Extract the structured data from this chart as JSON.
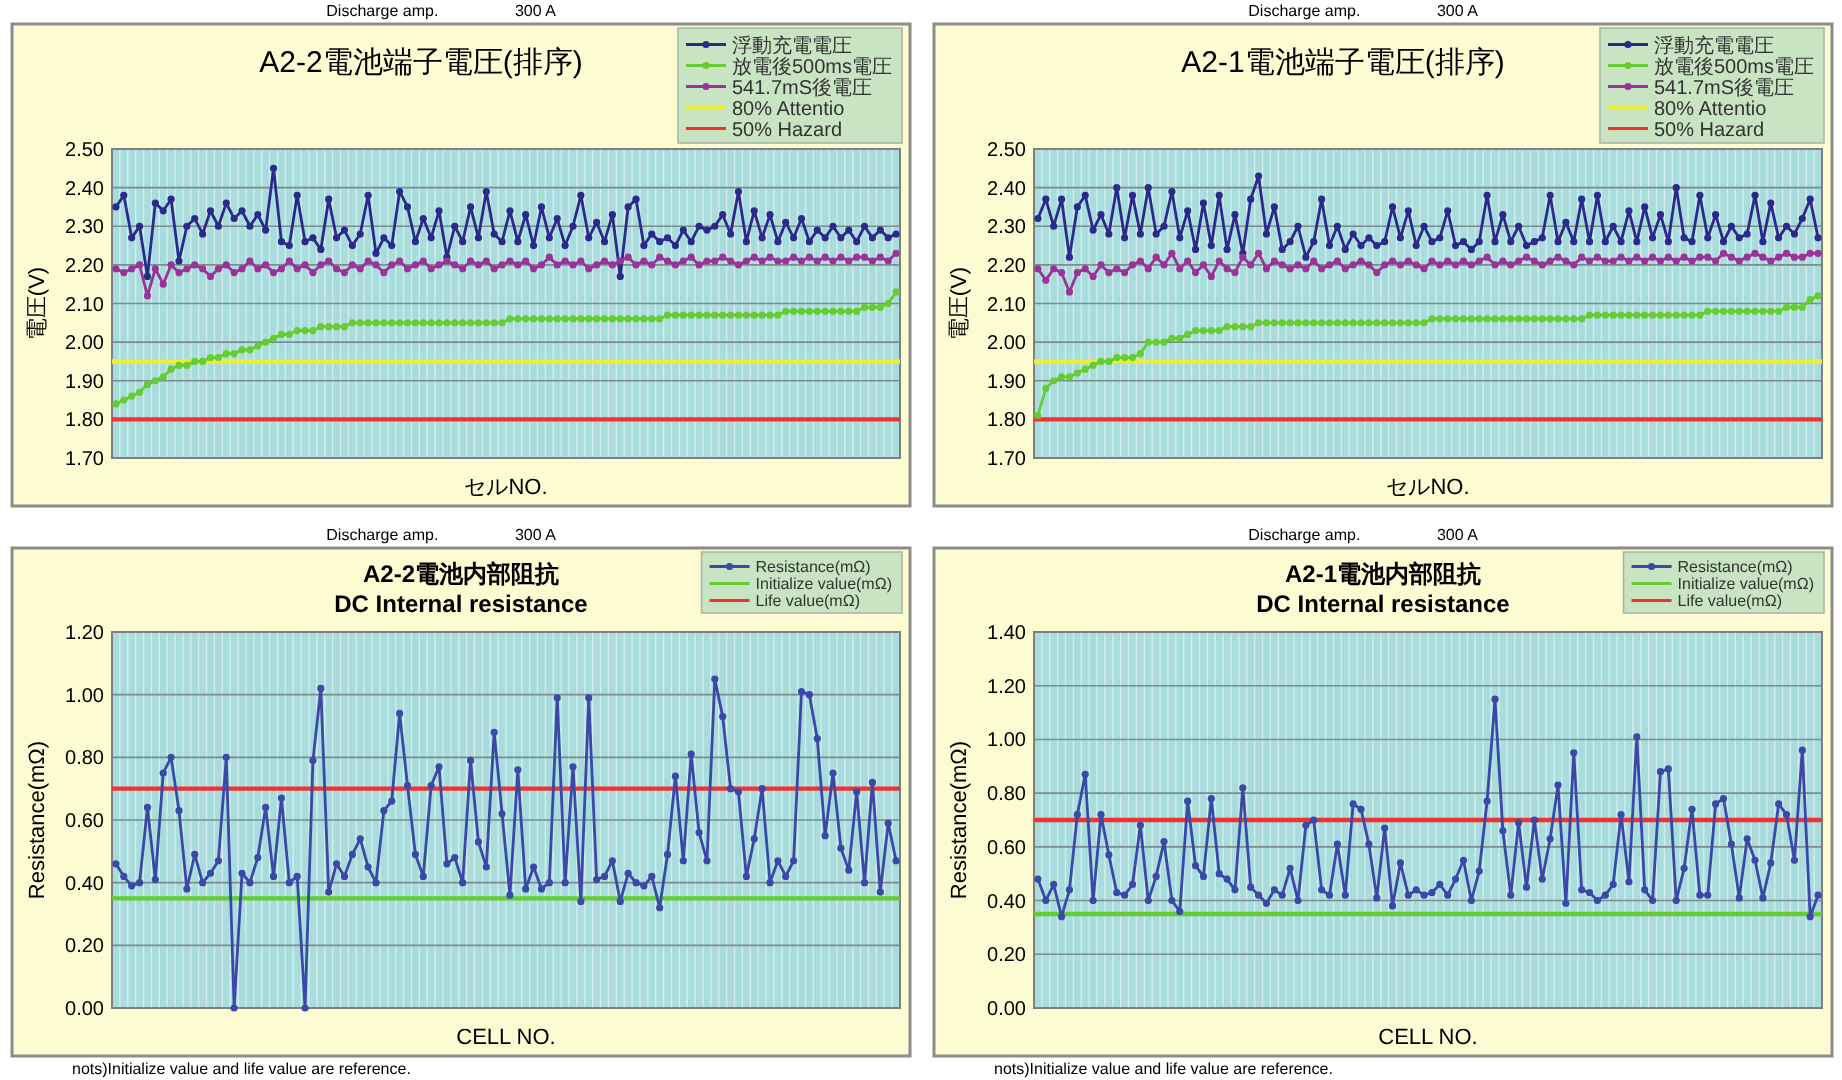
{
  "chart_data": [
    {
      "type": "line",
      "title": "A2-2電池端子電圧(排序)",
      "xlabel": "セルNO.",
      "ylabel": "電圧(V)",
      "categories": [
        null,
        null,
        null,
        null,
        null,
        null,
        null,
        null,
        null,
        null,
        null,
        null,
        null,
        null,
        null,
        null,
        null,
        null,
        null,
        null,
        null,
        null,
        null,
        null,
        null,
        null,
        null,
        null,
        null,
        null,
        null,
        null,
        null,
        null,
        null,
        null,
        null,
        null,
        null,
        null,
        null,
        null,
        null,
        null,
        null,
        null,
        null,
        null,
        null,
        null,
        null,
        null,
        null,
        null,
        null,
        null,
        null,
        null,
        null,
        null,
        null,
        null,
        null,
        null,
        null,
        null,
        null,
        null,
        null,
        null,
        null,
        null,
        null,
        null,
        null,
        null,
        null,
        null,
        null,
        null,
        null,
        null,
        null,
        null,
        null,
        null,
        null,
        null,
        null,
        null,
        null,
        null,
        null,
        null,
        null,
        null,
        null,
        null,
        null,
        null
      ],
      "series": [
        {
          "name": "浮動充電電圧",
          "color": "#2a2a8c",
          "values": [
            2.35,
            2.38,
            2.27,
            2.3,
            2.17,
            2.36,
            2.34,
            2.37,
            2.21,
            2.3,
            2.32,
            2.28,
            2.34,
            2.3,
            2.36,
            2.32,
            2.34,
            2.3,
            2.33,
            2.29,
            2.45,
            2.26,
            2.25,
            2.38,
            2.26,
            2.27,
            2.24,
            2.37,
            2.27,
            2.29,
            2.25,
            2.28,
            2.38,
            2.23,
            2.27,
            2.25,
            2.39,
            2.35,
            2.26,
            2.32,
            2.27,
            2.34,
            2.22,
            2.3,
            2.26,
            2.35,
            2.27,
            2.39,
            2.28,
            2.26,
            2.34,
            2.26,
            2.33,
            2.25,
            2.35,
            2.27,
            2.32,
            2.25,
            2.3,
            2.38,
            2.27,
            2.31,
            2.26,
            2.33,
            2.17,
            2.35,
            2.37,
            2.25,
            2.28,
            2.26,
            2.27,
            2.25,
            2.29,
            2.26,
            2.3,
            2.29,
            2.3,
            2.33,
            2.28,
            2.39,
            2.26,
            2.34,
            2.27,
            2.33,
            2.26,
            2.31,
            2.27,
            2.32,
            2.26,
            2.29,
            2.27,
            2.3,
            2.27,
            2.29,
            2.26,
            2.3,
            2.27,
            2.29,
            2.27,
            2.28
          ]
        },
        {
          "name": "放電後500ms電圧",
          "color": "#66cc33",
          "values": [
            1.84,
            1.85,
            1.86,
            1.87,
            1.89,
            1.9,
            1.91,
            1.93,
            1.94,
            1.94,
            1.95,
            1.95,
            1.96,
            1.96,
            1.97,
            1.97,
            1.98,
            1.98,
            1.99,
            2.0,
            2.01,
            2.02,
            2.02,
            2.03,
            2.03,
            2.03,
            2.04,
            2.04,
            2.04,
            2.04,
            2.05,
            2.05,
            2.05,
            2.05,
            2.05,
            2.05,
            2.05,
            2.05,
            2.05,
            2.05,
            2.05,
            2.05,
            2.05,
            2.05,
            2.05,
            2.05,
            2.05,
            2.05,
            2.05,
            2.05,
            2.06,
            2.06,
            2.06,
            2.06,
            2.06,
            2.06,
            2.06,
            2.06,
            2.06,
            2.06,
            2.06,
            2.06,
            2.06,
            2.06,
            2.06,
            2.06,
            2.06,
            2.06,
            2.06,
            2.06,
            2.07,
            2.07,
            2.07,
            2.07,
            2.07,
            2.07,
            2.07,
            2.07,
            2.07,
            2.07,
            2.07,
            2.07,
            2.07,
            2.07,
            2.07,
            2.08,
            2.08,
            2.08,
            2.08,
            2.08,
            2.08,
            2.08,
            2.08,
            2.08,
            2.08,
            2.09,
            2.09,
            2.09,
            2.1,
            2.13
          ]
        },
        {
          "name": "541.7mS後電圧",
          "color": "#993399",
          "values": [
            2.19,
            2.18,
            2.19,
            2.2,
            2.12,
            2.19,
            2.15,
            2.2,
            2.18,
            2.19,
            2.2,
            2.19,
            2.17,
            2.19,
            2.2,
            2.18,
            2.19,
            2.21,
            2.19,
            2.2,
            2.18,
            2.19,
            2.21,
            2.19,
            2.2,
            2.18,
            2.2,
            2.21,
            2.19,
            2.18,
            2.2,
            2.19,
            2.21,
            2.2,
            2.18,
            2.2,
            2.21,
            2.19,
            2.2,
            2.21,
            2.19,
            2.2,
            2.21,
            2.2,
            2.19,
            2.21,
            2.2,
            2.21,
            2.19,
            2.2,
            2.21,
            2.2,
            2.21,
            2.19,
            2.2,
            2.22,
            2.2,
            2.21,
            2.2,
            2.21,
            2.19,
            2.2,
            2.21,
            2.2,
            2.21,
            2.22,
            2.2,
            2.21,
            2.2,
            2.22,
            2.21,
            2.2,
            2.21,
            2.22,
            2.2,
            2.21,
            2.21,
            2.22,
            2.21,
            2.2,
            2.21,
            2.22,
            2.21,
            2.22,
            2.21,
            2.21,
            2.22,
            2.21,
            2.22,
            2.21,
            2.22,
            2.21,
            2.22,
            2.21,
            2.22,
            2.22,
            2.21,
            2.22,
            2.21,
            2.23
          ]
        }
      ],
      "ylim": [
        1.7,
        2.5
      ],
      "yticks": [
        {
          "value": 1.7,
          "label": "1.70"
        },
        {
          "value": 1.8,
          "label": "1.80"
        },
        {
          "value": 1.9,
          "label": "1.90"
        },
        {
          "value": 2.0,
          "label": "2.00"
        },
        {
          "value": 2.1,
          "label": "2.10"
        },
        {
          "value": 2.2,
          "label": "2.20"
        },
        {
          "value": 2.3,
          "label": "2.30"
        },
        {
          "value": 2.4,
          "label": "2.40"
        },
        {
          "value": 2.5,
          "label": "2.50"
        }
      ],
      "ref_lines": [
        {
          "axis": "y",
          "value": 1.95,
          "label": "80% Attentio",
          "color": "#eeee33"
        },
        {
          "axis": "y",
          "value": 1.8,
          "label": "50% Hazard",
          "color": "#ee3333"
        }
      ],
      "grid": true,
      "legend": "top right",
      "marker": "circle",
      "line_style": "solid",
      "tick_labels": "y",
      "annotations": [
        "Discharge amp.",
        "300 A"
      ]
    },
    {
      "type": "line",
      "title": "A2-1電池端子電圧(排序)",
      "xlabel": "セルNO.",
      "ylabel": "電圧(V)",
      "categories": [
        null,
        null,
        null,
        null,
        null,
        null,
        null,
        null,
        null,
        null,
        null,
        null,
        null,
        null,
        null,
        null,
        null,
        null,
        null,
        null,
        null,
        null,
        null,
        null,
        null,
        null,
        null,
        null,
        null,
        null,
        null,
        null,
        null,
        null,
        null,
        null,
        null,
        null,
        null,
        null,
        null,
        null,
        null,
        null,
        null,
        null,
        null,
        null,
        null,
        null,
        null,
        null,
        null,
        null,
        null,
        null,
        null,
        null,
        null,
        null,
        null,
        null,
        null,
        null,
        null,
        null,
        null,
        null,
        null,
        null,
        null,
        null,
        null,
        null,
        null,
        null,
        null,
        null,
        null,
        null,
        null,
        null,
        null,
        null,
        null,
        null,
        null,
        null,
        null,
        null,
        null,
        null,
        null,
        null,
        null,
        null,
        null,
        null,
        null,
        null
      ],
      "series": [
        {
          "name": "浮動充電電圧",
          "color": "#2a2a8c",
          "values": [
            2.32,
            2.37,
            2.3,
            2.37,
            2.22,
            2.35,
            2.38,
            2.29,
            2.33,
            2.28,
            2.4,
            2.27,
            2.38,
            2.28,
            2.4,
            2.28,
            2.3,
            2.39,
            2.27,
            2.34,
            2.24,
            2.36,
            2.25,
            2.38,
            2.24,
            2.33,
            2.23,
            2.37,
            2.43,
            2.28,
            2.35,
            2.24,
            2.26,
            2.3,
            2.22,
            2.26,
            2.37,
            2.25,
            2.3,
            2.24,
            2.28,
            2.25,
            2.27,
            2.25,
            2.26,
            2.35,
            2.27,
            2.34,
            2.25,
            2.3,
            2.26,
            2.27,
            2.34,
            2.25,
            2.26,
            2.24,
            2.26,
            2.38,
            2.26,
            2.33,
            2.26,
            2.3,
            2.25,
            2.26,
            2.27,
            2.38,
            2.26,
            2.31,
            2.26,
            2.37,
            2.26,
            2.38,
            2.26,
            2.3,
            2.26,
            2.34,
            2.26,
            2.35,
            2.27,
            2.33,
            2.26,
            2.4,
            2.27,
            2.26,
            2.38,
            2.27,
            2.33,
            2.26,
            2.3,
            2.27,
            2.28,
            2.38,
            2.26,
            2.36,
            2.27,
            2.3,
            2.28,
            2.32,
            2.37,
            2.27
          ]
        },
        {
          "name": "放電後500ms電圧",
          "color": "#66cc33",
          "values": [
            1.81,
            1.88,
            1.9,
            1.91,
            1.91,
            1.92,
            1.93,
            1.94,
            1.95,
            1.95,
            1.96,
            1.96,
            1.96,
            1.97,
            2.0,
            2.0,
            2.0,
            2.01,
            2.01,
            2.02,
            2.03,
            2.03,
            2.03,
            2.03,
            2.04,
            2.04,
            2.04,
            2.04,
            2.05,
            2.05,
            2.05,
            2.05,
            2.05,
            2.05,
            2.05,
            2.05,
            2.05,
            2.05,
            2.05,
            2.05,
            2.05,
            2.05,
            2.05,
            2.05,
            2.05,
            2.05,
            2.05,
            2.05,
            2.05,
            2.05,
            2.06,
            2.06,
            2.06,
            2.06,
            2.06,
            2.06,
            2.06,
            2.06,
            2.06,
            2.06,
            2.06,
            2.06,
            2.06,
            2.06,
            2.06,
            2.06,
            2.06,
            2.06,
            2.06,
            2.06,
            2.07,
            2.07,
            2.07,
            2.07,
            2.07,
            2.07,
            2.07,
            2.07,
            2.07,
            2.07,
            2.07,
            2.07,
            2.07,
            2.07,
            2.07,
            2.08,
            2.08,
            2.08,
            2.08,
            2.08,
            2.08,
            2.08,
            2.08,
            2.08,
            2.08,
            2.09,
            2.09,
            2.09,
            2.11,
            2.12
          ]
        },
        {
          "name": "541.7mS後電圧",
          "color": "#993399",
          "values": [
            2.19,
            2.16,
            2.19,
            2.18,
            2.13,
            2.18,
            2.19,
            2.17,
            2.2,
            2.18,
            2.19,
            2.18,
            2.2,
            2.21,
            2.19,
            2.22,
            2.2,
            2.23,
            2.19,
            2.21,
            2.18,
            2.2,
            2.17,
            2.21,
            2.19,
            2.18,
            2.22,
            2.2,
            2.23,
            2.19,
            2.21,
            2.2,
            2.19,
            2.2,
            2.19,
            2.21,
            2.19,
            2.2,
            2.21,
            2.19,
            2.2,
            2.21,
            2.2,
            2.18,
            2.2,
            2.21,
            2.2,
            2.21,
            2.2,
            2.19,
            2.21,
            2.2,
            2.21,
            2.2,
            2.21,
            2.2,
            2.21,
            2.22,
            2.2,
            2.21,
            2.2,
            2.21,
            2.22,
            2.21,
            2.2,
            2.21,
            2.22,
            2.21,
            2.2,
            2.22,
            2.21,
            2.22,
            2.21,
            2.21,
            2.22,
            2.21,
            2.22,
            2.21,
            2.22,
            2.21,
            2.22,
            2.21,
            2.22,
            2.21,
            2.22,
            2.22,
            2.21,
            2.23,
            2.22,
            2.21,
            2.22,
            2.23,
            2.22,
            2.21,
            2.22,
            2.23,
            2.22,
            2.22,
            2.23,
            2.23
          ]
        }
      ],
      "ylim": [
        1.7,
        2.5
      ],
      "yticks": [
        {
          "value": 1.7,
          "label": "1.70"
        },
        {
          "value": 1.8,
          "label": "1.80"
        },
        {
          "value": 1.9,
          "label": "1.90"
        },
        {
          "value": 2.0,
          "label": "2.00"
        },
        {
          "value": 2.1,
          "label": "2.10"
        },
        {
          "value": 2.2,
          "label": "2.20"
        },
        {
          "value": 2.3,
          "label": "2.30"
        },
        {
          "value": 2.4,
          "label": "2.40"
        },
        {
          "value": 2.5,
          "label": "2.50"
        }
      ],
      "ref_lines": [
        {
          "axis": "y",
          "value": 1.95,
          "label": "80% Attentio",
          "color": "#eeee33"
        },
        {
          "axis": "y",
          "value": 1.8,
          "label": "50% Hazard",
          "color": "#ee3333"
        }
      ],
      "grid": true,
      "legend": "top right",
      "marker": "circle",
      "line_style": "solid",
      "tick_labels": "y",
      "annotations": [
        "Discharge amp.",
        "300 A"
      ]
    },
    {
      "type": "line",
      "title": "A2-2電池内部阻抗",
      "subtitle": "DC Internal resistance",
      "xlabel": "CELL NO.",
      "ylabel": "Resistance(mΩ)",
      "categories": [
        null,
        null,
        null,
        null,
        null,
        null,
        null,
        null,
        null,
        null,
        null,
        null,
        null,
        null,
        null,
        null,
        null,
        null,
        null,
        null,
        null,
        null,
        null,
        null,
        null,
        null,
        null,
        null,
        null,
        null,
        null,
        null,
        null,
        null,
        null,
        null,
        null,
        null,
        null,
        null,
        null,
        null,
        null,
        null,
        null,
        null,
        null,
        null,
        null,
        null,
        null,
        null,
        null,
        null,
        null,
        null,
        null,
        null,
        null,
        null,
        null,
        null,
        null,
        null,
        null,
        null,
        null,
        null,
        null,
        null,
        null,
        null,
        null,
        null,
        null,
        null,
        null,
        null,
        null,
        null,
        null,
        null,
        null,
        null,
        null,
        null,
        null,
        null,
        null,
        null,
        null,
        null,
        null,
        null,
        null,
        null,
        null,
        null,
        null,
        null
      ],
      "series": [
        {
          "name": "Resistance(mΩ)",
          "color": "#3a48a8",
          "values": [
            0.46,
            0.42,
            0.39,
            0.4,
            0.64,
            0.41,
            0.75,
            0.8,
            0.63,
            0.38,
            0.49,
            0.4,
            0.43,
            0.47,
            0.8,
            0.0,
            0.43,
            0.4,
            0.48,
            0.64,
            0.42,
            0.67,
            0.4,
            0.42,
            0.0,
            0.79,
            1.02,
            0.37,
            0.46,
            0.42,
            0.49,
            0.54,
            0.45,
            0.4,
            0.63,
            0.66,
            0.94,
            0.71,
            0.49,
            0.42,
            0.71,
            0.77,
            0.46,
            0.48,
            0.4,
            0.79,
            0.53,
            0.45,
            0.88,
            0.62,
            0.36,
            0.76,
            0.38,
            0.45,
            0.38,
            0.4,
            0.99,
            0.4,
            0.77,
            0.34,
            0.99,
            0.41,
            0.42,
            0.47,
            0.34,
            0.43,
            0.4,
            0.39,
            0.42,
            0.32,
            0.49,
            0.74,
            0.47,
            0.81,
            0.56,
            0.47,
            1.05,
            0.93,
            0.7,
            0.69,
            0.42,
            0.54,
            0.7,
            0.4,
            0.47,
            0.42,
            0.47,
            1.01,
            1.0,
            0.86,
            0.55,
            0.75,
            0.51,
            0.44,
            0.69,
            0.4,
            0.72,
            0.37,
            0.59,
            0.47
          ]
        }
      ],
      "ylim": [
        0,
        1.2
      ],
      "yticks": [
        {
          "value": 0,
          "label": "0.00"
        },
        {
          "value": 0.2,
          "label": "0.20"
        },
        {
          "value": 0.4,
          "label": "0.40"
        },
        {
          "value": 0.6,
          "label": "0.60"
        },
        {
          "value": 0.8,
          "label": "0.80"
        },
        {
          "value": 1.0,
          "label": "1.00"
        },
        {
          "value": 1.2,
          "label": "1.20"
        }
      ],
      "ref_lines": [
        {
          "axis": "y",
          "value": 0.35,
          "label": "Initialize value(mΩ)",
          "color": "#66cc33"
        },
        {
          "axis": "y",
          "value": 0.7,
          "label": "Life value(mΩ)",
          "color": "#ee3333"
        }
      ],
      "grid": true,
      "legend": "top right",
      "marker": "circle",
      "line_style": "solid",
      "tick_labels": "y",
      "annotations": [
        "Discharge amp.",
        "300 A",
        "nots)Initialize value and life value are reference."
      ]
    },
    {
      "type": "line",
      "title": "A2-1電池内部阻抗",
      "subtitle": "DC Internal resistance",
      "xlabel": "CELL NO.",
      "ylabel": "Resistance(mΩ)",
      "categories": [
        null,
        null,
        null,
        null,
        null,
        null,
        null,
        null,
        null,
        null,
        null,
        null,
        null,
        null,
        null,
        null,
        null,
        null,
        null,
        null,
        null,
        null,
        null,
        null,
        null,
        null,
        null,
        null,
        null,
        null,
        null,
        null,
        null,
        null,
        null,
        null,
        null,
        null,
        null,
        null,
        null,
        null,
        null,
        null,
        null,
        null,
        null,
        null,
        null,
        null,
        null,
        null,
        null,
        null,
        null,
        null,
        null,
        null,
        null,
        null,
        null,
        null,
        null,
        null,
        null,
        null,
        null,
        null,
        null,
        null,
        null,
        null,
        null,
        null,
        null,
        null,
        null,
        null,
        null,
        null,
        null,
        null,
        null,
        null,
        null,
        null,
        null,
        null,
        null,
        null,
        null,
        null,
        null,
        null,
        null,
        null,
        null,
        null,
        null,
        null
      ],
      "series": [
        {
          "name": "Resistance(mΩ)",
          "color": "#3a48a8",
          "values": [
            0.48,
            0.4,
            0.46,
            0.34,
            0.44,
            0.72,
            0.87,
            0.4,
            0.72,
            0.57,
            0.43,
            0.42,
            0.46,
            0.68,
            0.4,
            0.49,
            0.62,
            0.4,
            0.36,
            0.77,
            0.53,
            0.49,
            0.78,
            0.5,
            0.48,
            0.44,
            0.82,
            0.45,
            0.42,
            0.39,
            0.44,
            0.42,
            0.52,
            0.4,
            0.68,
            0.7,
            0.44,
            0.42,
            0.61,
            0.42,
            0.76,
            0.74,
            0.61,
            0.41,
            0.67,
            0.38,
            0.54,
            0.42,
            0.44,
            0.42,
            0.43,
            0.46,
            0.42,
            0.48,
            0.55,
            0.4,
            0.51,
            0.77,
            1.15,
            0.66,
            0.42,
            0.69,
            0.45,
            0.7,
            0.48,
            0.63,
            0.83,
            0.39,
            0.95,
            0.44,
            0.43,
            0.4,
            0.42,
            0.46,
            0.72,
            0.47,
            1.01,
            0.44,
            0.4,
            0.88,
            0.89,
            0.4,
            0.52,
            0.74,
            0.42,
            0.42,
            0.76,
            0.78,
            0.61,
            0.41,
            0.63,
            0.55,
            0.41,
            0.54,
            0.76,
            0.72,
            0.55,
            0.96,
            0.34,
            0.42
          ]
        }
      ],
      "ylim": [
        0,
        1.4
      ],
      "yticks": [
        {
          "value": 0,
          "label": "0.00"
        },
        {
          "value": 0.2,
          "label": "0.20"
        },
        {
          "value": 0.4,
          "label": "0.40"
        },
        {
          "value": 0.6,
          "label": "0.60"
        },
        {
          "value": 0.8,
          "label": "0.80"
        },
        {
          "value": 1.0,
          "label": "1.00"
        },
        {
          "value": 1.2,
          "label": "1.20"
        },
        {
          "value": 1.4,
          "label": "1.40"
        }
      ],
      "ref_lines": [
        {
          "axis": "y",
          "value": 0.35,
          "label": "Initialize value(mΩ)",
          "color": "#66cc33"
        },
        {
          "axis": "y",
          "value": 0.7,
          "label": "Life value(mΩ)",
          "color": "#ee3333"
        }
      ],
      "grid": true,
      "legend": "top right",
      "marker": "circle",
      "line_style": "solid",
      "tick_labels": "y",
      "annotations": [
        "Discharge amp.",
        "300 A",
        "nots)Initialize value and life value are reference."
      ]
    }
  ]
}
